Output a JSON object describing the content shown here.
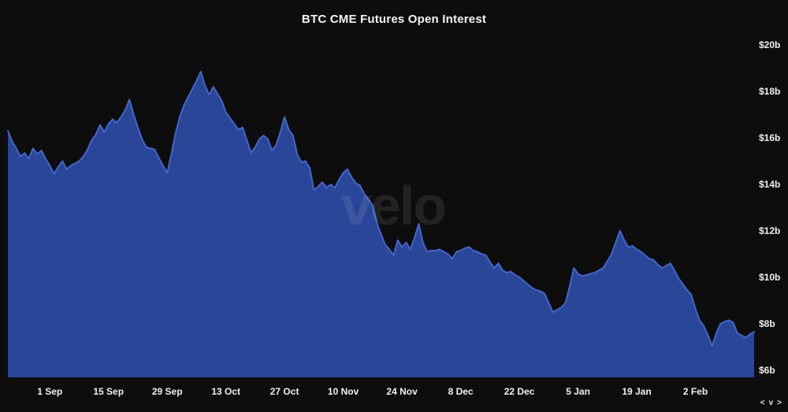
{
  "title": "BTC CME Futures Open Interest",
  "watermark": "velo",
  "colors": {
    "background": "#0d0d0e",
    "area_fill": "#2a4699",
    "area_line": "#4566c9",
    "axis_text": "#f0f0f0",
    "title_text": "#f5f5f5"
  },
  "pager": {
    "left": "<",
    "down": "v",
    "right": ">"
  },
  "chart_data": {
    "type": "area",
    "title": "BTC CME Futures Open Interest",
    "xlabel": "",
    "ylabel": "",
    "unit": "USD billions",
    "grid": false,
    "legend": "none",
    "y_axis_side": "right",
    "y_ticks": [
      "$20b",
      "$18b",
      "$16b",
      "$14b",
      "$12b",
      "$10b",
      "$8b",
      "$6b"
    ],
    "y_tick_values": [
      20,
      18,
      16,
      14,
      12,
      10,
      8,
      6
    ],
    "ylim": [
      6,
      20
    ],
    "x_ticks": [
      "1 Sep",
      "15 Sep",
      "29 Sep",
      "13 Oct",
      "27 Oct",
      "10 Nov",
      "24 Nov",
      "8 Dec",
      "22 Dec",
      "5 Jan",
      "19 Jan",
      "2 Feb"
    ],
    "series": [
      {
        "name": "BTC CME Futures Open Interest",
        "points": [
          [
            "22 Aug",
            16.3
          ],
          [
            "23 Aug",
            15.85
          ],
          [
            "24 Aug",
            15.55
          ],
          [
            "25 Aug",
            15.2
          ],
          [
            "26 Aug",
            15.35
          ],
          [
            "27 Aug",
            15.1
          ],
          [
            "28 Aug",
            15.55
          ],
          [
            "29 Aug",
            15.3
          ],
          [
            "30 Aug",
            15.45
          ],
          [
            "31 Aug",
            15.1
          ],
          [
            "1 Sep",
            14.8
          ],
          [
            "2 Sep",
            14.45
          ],
          [
            "3 Sep",
            14.75
          ],
          [
            "4 Sep",
            15.0
          ],
          [
            "5 Sep",
            14.65
          ],
          [
            "6 Sep",
            14.8
          ],
          [
            "7 Sep",
            14.9
          ],
          [
            "8 Sep",
            15.0
          ],
          [
            "9 Sep",
            15.2
          ],
          [
            "10 Sep",
            15.5
          ],
          [
            "11 Sep",
            15.9
          ],
          [
            "12 Sep",
            16.15
          ],
          [
            "13 Sep",
            16.55
          ],
          [
            "14 Sep",
            16.25
          ],
          [
            "15 Sep",
            16.6
          ],
          [
            "16 Sep",
            16.8
          ],
          [
            "17 Sep",
            16.65
          ],
          [
            "18 Sep",
            16.9
          ],
          [
            "19 Sep",
            17.2
          ],
          [
            "20 Sep",
            17.65
          ],
          [
            "21 Sep",
            17.0
          ],
          [
            "22 Sep",
            16.45
          ],
          [
            "23 Sep",
            15.95
          ],
          [
            "24 Sep",
            15.6
          ],
          [
            "25 Sep",
            15.55
          ],
          [
            "26 Sep",
            15.5
          ],
          [
            "27 Sep",
            15.15
          ],
          [
            "28 Sep",
            14.8
          ],
          [
            "29 Sep",
            14.5
          ],
          [
            "30 Sep",
            15.3
          ],
          [
            "1 Oct",
            16.2
          ],
          [
            "2 Oct",
            16.9
          ],
          [
            "3 Oct",
            17.4
          ],
          [
            "4 Oct",
            17.75
          ],
          [
            "5 Oct",
            18.1
          ],
          [
            "6 Oct",
            18.45
          ],
          [
            "7 Oct",
            18.85
          ],
          [
            "8 Oct",
            18.25
          ],
          [
            "9 Oct",
            17.85
          ],
          [
            "10 Oct",
            18.2
          ],
          [
            "11 Oct",
            17.9
          ],
          [
            "12 Oct",
            17.6
          ],
          [
            "13 Oct",
            17.1
          ],
          [
            "14 Oct",
            16.85
          ],
          [
            "15 Oct",
            16.6
          ],
          [
            "16 Oct",
            16.35
          ],
          [
            "17 Oct",
            16.45
          ],
          [
            "18 Oct",
            15.9
          ],
          [
            "19 Oct",
            15.35
          ],
          [
            "20 Oct",
            15.6
          ],
          [
            "21 Oct",
            15.95
          ],
          [
            "22 Oct",
            16.1
          ],
          [
            "23 Oct",
            15.95
          ],
          [
            "24 Oct",
            15.45
          ],
          [
            "25 Oct",
            15.7
          ],
          [
            "26 Oct",
            16.25
          ],
          [
            "27 Oct",
            16.9
          ],
          [
            "28 Oct",
            16.35
          ],
          [
            "29 Oct",
            16.1
          ],
          [
            "30 Oct",
            15.3
          ],
          [
            "31 Oct",
            14.95
          ],
          [
            "1 Nov",
            15.0
          ],
          [
            "2 Nov",
            14.7
          ],
          [
            "3 Nov",
            13.75
          ],
          [
            "4 Nov",
            13.9
          ],
          [
            "5 Nov",
            14.1
          ],
          [
            "6 Nov",
            13.85
          ],
          [
            "7 Nov",
            14.0
          ],
          [
            "8 Nov",
            13.85
          ],
          [
            "9 Nov",
            14.2
          ],
          [
            "10 Nov",
            14.5
          ],
          [
            "11 Nov",
            14.65
          ],
          [
            "12 Nov",
            14.3
          ],
          [
            "13 Nov",
            14.05
          ],
          [
            "14 Nov",
            13.95
          ],
          [
            "15 Nov",
            13.6
          ],
          [
            "16 Nov",
            13.35
          ],
          [
            "17 Nov",
            13.1
          ],
          [
            "18 Nov",
            12.35
          ],
          [
            "19 Nov",
            11.85
          ],
          [
            "20 Nov",
            11.4
          ],
          [
            "21 Nov",
            11.2
          ],
          [
            "22 Nov",
            10.95
          ],
          [
            "23 Nov",
            11.6
          ],
          [
            "24 Nov",
            11.3
          ],
          [
            "25 Nov",
            11.5
          ],
          [
            "26 Nov",
            11.2
          ],
          [
            "27 Nov",
            11.7
          ],
          [
            "28 Nov",
            12.3
          ],
          [
            "29 Nov",
            11.5
          ],
          [
            "30 Nov",
            11.1
          ],
          [
            "1 Dec",
            11.15
          ],
          [
            "2 Dec",
            11.15
          ],
          [
            "3 Dec",
            11.2
          ],
          [
            "4 Dec",
            11.1
          ],
          [
            "5 Dec",
            11.0
          ],
          [
            "6 Dec",
            10.8
          ],
          [
            "7 Dec",
            11.1
          ],
          [
            "8 Dec",
            11.15
          ],
          [
            "9 Dec",
            11.25
          ],
          [
            "10 Dec",
            11.3
          ],
          [
            "11 Dec",
            11.15
          ],
          [
            "12 Dec",
            11.1
          ],
          [
            "13 Dec",
            11.0
          ],
          [
            "14 Dec",
            10.95
          ],
          [
            "15 Dec",
            10.65
          ],
          [
            "16 Dec",
            10.4
          ],
          [
            "17 Dec",
            10.6
          ],
          [
            "18 Dec",
            10.3
          ],
          [
            "19 Dec",
            10.2
          ],
          [
            "20 Dec",
            10.25
          ],
          [
            "21 Dec",
            10.1
          ],
          [
            "22 Dec",
            10.0
          ],
          [
            "23 Dec",
            9.85
          ],
          [
            "24 Dec",
            9.7
          ],
          [
            "25 Dec",
            9.55
          ],
          [
            "26 Dec",
            9.45
          ],
          [
            "27 Dec",
            9.4
          ],
          [
            "28 Dec",
            9.3
          ],
          [
            "29 Dec",
            8.9
          ],
          [
            "30 Dec",
            8.5
          ],
          [
            "31 Dec",
            8.6
          ],
          [
            "1 Jan",
            8.7
          ],
          [
            "2 Jan",
            8.9
          ],
          [
            "3 Jan",
            9.6
          ],
          [
            "4 Jan",
            10.4
          ],
          [
            "5 Jan",
            10.15
          ],
          [
            "6 Jan",
            10.05
          ],
          [
            "7 Jan",
            10.1
          ],
          [
            "8 Jan",
            10.15
          ],
          [
            "9 Jan",
            10.2
          ],
          [
            "10 Jan",
            10.3
          ],
          [
            "11 Jan",
            10.4
          ],
          [
            "12 Jan",
            10.7
          ],
          [
            "13 Jan",
            11.0
          ],
          [
            "14 Jan",
            11.5
          ],
          [
            "15 Jan",
            12.0
          ],
          [
            "16 Jan",
            11.6
          ],
          [
            "17 Jan",
            11.3
          ],
          [
            "18 Jan",
            11.35
          ],
          [
            "19 Jan",
            11.2
          ],
          [
            "20 Jan",
            11.1
          ],
          [
            "21 Jan",
            10.95
          ],
          [
            "22 Jan",
            10.8
          ],
          [
            "23 Jan",
            10.75
          ],
          [
            "24 Jan",
            10.55
          ],
          [
            "25 Jan",
            10.4
          ],
          [
            "26 Jan",
            10.5
          ],
          [
            "27 Jan",
            10.6
          ],
          [
            "28 Jan",
            10.3
          ],
          [
            "29 Jan",
            9.95
          ],
          [
            "30 Jan",
            9.7
          ],
          [
            "31 Jan",
            9.45
          ],
          [
            "1 Feb",
            9.25
          ],
          [
            "2 Feb",
            8.65
          ],
          [
            "3 Feb",
            8.15
          ],
          [
            "4 Feb",
            7.9
          ],
          [
            "5 Feb",
            7.5
          ],
          [
            "6 Feb",
            7.05
          ],
          [
            "7 Feb",
            7.6
          ],
          [
            "8 Feb",
            8.0
          ],
          [
            "9 Feb",
            8.1
          ],
          [
            "10 Feb",
            8.15
          ],
          [
            "11 Feb",
            8.05
          ],
          [
            "12 Feb",
            7.6
          ],
          [
            "13 Feb",
            7.5
          ],
          [
            "14 Feb",
            7.4
          ],
          [
            "15 Feb",
            7.55
          ],
          [
            "16 Feb",
            7.65
          ]
        ]
      }
    ]
  }
}
